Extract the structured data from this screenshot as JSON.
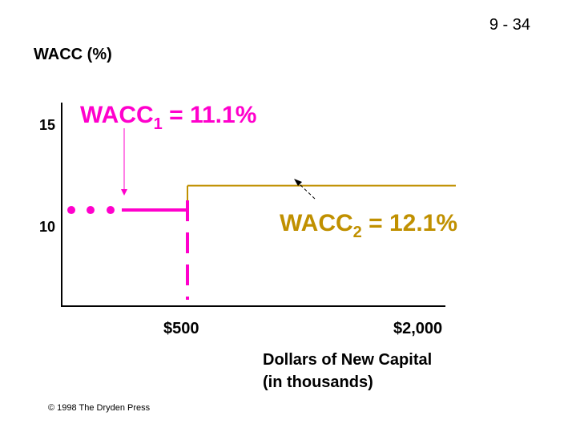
{
  "slide_number": "9 - 34",
  "copyright": "© 1998 The Dryden Press",
  "colors": {
    "wacc1": "#ff00cc",
    "wacc2": "#c09000",
    "axis": "#000000"
  },
  "chart_data": {
    "type": "line",
    "ylabel": "WACC (%)",
    "xlabel_line1": "Dollars of New Capital",
    "xlabel_line2": "(in thousands)",
    "yticks": [
      {
        "value": 10,
        "label": "10"
      },
      {
        "value": 15,
        "label": "15"
      }
    ],
    "xticks": [
      {
        "value": 500,
        "label": "$500"
      },
      {
        "value": 2000,
        "label": "$2,000"
      }
    ],
    "break_point": 500,
    "segments": [
      {
        "name": "WACC1",
        "level": 11.1,
        "x_from": 0,
        "x_to": 500,
        "style": "solid-dotted-lead"
      },
      {
        "name": "WACC2",
        "level": 12.1,
        "x_from": 500,
        "x_to": 2000,
        "style": "solid"
      }
    ],
    "annotations": {
      "wacc1": {
        "base": "WACC",
        "sub": "1",
        "rest": " = 11.1%"
      },
      "wacc2": {
        "base": "WACC",
        "sub": "2",
        "rest": " = 12.1%"
      }
    }
  }
}
